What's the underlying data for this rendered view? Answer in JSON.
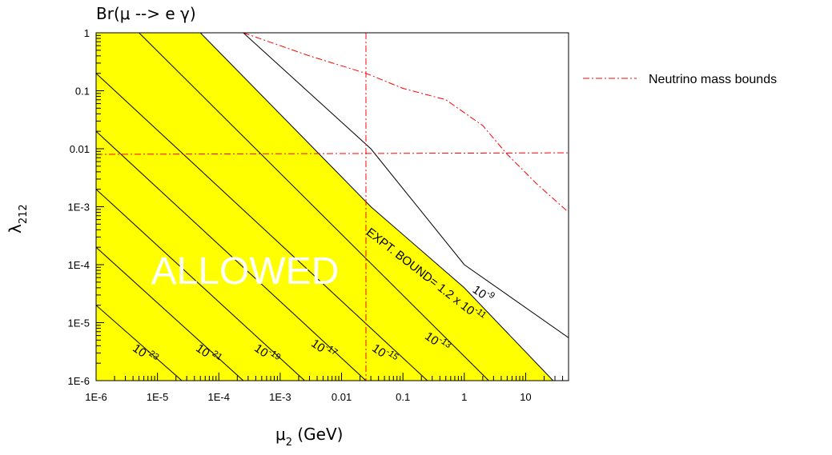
{
  "chart_data": {
    "type": "line",
    "title": "Br(μ --> e γ)",
    "xlabel": {
      "main": "μ",
      "sub": "2",
      "unit": "  (GeV)"
    },
    "ylabel": {
      "main": "λ",
      "sub": "212"
    },
    "xscale": "log",
    "yscale": "log",
    "xlim": [
      1e-06,
      50
    ],
    "ylim": [
      1e-06,
      1
    ],
    "x_ticks": [
      {
        "value": 1e-06,
        "label": "1E-6"
      },
      {
        "value": 1e-05,
        "label": "1E-5"
      },
      {
        "value": 0.0001,
        "label": "1E-4"
      },
      {
        "value": 0.001,
        "label": "1E-3"
      },
      {
        "value": 0.01,
        "label": "0.01"
      },
      {
        "value": 0.1,
        "label": "0.1"
      },
      {
        "value": 1,
        "label": "1"
      },
      {
        "value": 10,
        "label": "10"
      }
    ],
    "y_ticks": [
      {
        "value": 1,
        "label": "1"
      },
      {
        "value": 0.1,
        "label": "0.1"
      },
      {
        "value": 0.01,
        "label": "0.01"
      },
      {
        "value": 0.001,
        "label": "1E-3"
      },
      {
        "value": 0.0001,
        "label": "1E-4"
      },
      {
        "value": 1e-05,
        "label": "1E-5"
      },
      {
        "value": 1e-06,
        "label": "1E-6"
      }
    ],
    "allowed_region_color": "#ffff00",
    "allowed_label": "ALLOWED",
    "contours": [
      {
        "label": "23",
        "points": [
          [
            1e-06,
            2e-05
          ],
          [
            2.5e-05,
            1e-06
          ]
        ]
      },
      {
        "label": "21",
        "points": [
          [
            1e-06,
            0.0002
          ],
          [
            0.00025,
            1e-06
          ]
        ]
      },
      {
        "label": "19",
        "points": [
          [
            1e-06,
            0.002
          ],
          [
            0.0025,
            1e-06
          ]
        ]
      },
      {
        "label": "17",
        "points": [
          [
            1e-06,
            0.02
          ],
          [
            0.025,
            1e-06
          ]
        ]
      },
      {
        "label": "15",
        "points": [
          [
            1e-06,
            0.2
          ],
          [
            0.25,
            1e-06
          ]
        ]
      },
      {
        "label": "13",
        "points": [
          [
            5e-06,
            1
          ],
          [
            2.5,
            1e-06
          ]
        ]
      },
      {
        "label": "9",
        "points": [
          [
            0.00025,
            1
          ],
          [
            0.03,
            0.01
          ],
          [
            1,
            0.0001
          ],
          [
            50,
            5.5e-06
          ]
        ]
      }
    ],
    "expt_bound": {
      "label": "EXPT.  BOUND= 1.2 x 10",
      "exponent": "-11",
      "points": [
        [
          5e-05,
          1
        ],
        [
          0.03,
          0.001
        ],
        [
          1,
          4e-05
        ],
        [
          28,
          1e-06
        ]
      ]
    },
    "neutrino_bounds": {
      "name": "Neutrino  mass bounds",
      "color": "#ff0000",
      "vertical_x": 0.025,
      "horizontal": [
        [
          1e-06,
          0.008
        ],
        [
          50,
          0.0085
        ]
      ],
      "curve": [
        [
          0.00025,
          1
        ],
        [
          0.003,
          0.4
        ],
        [
          0.025,
          0.2
        ],
        [
          0.1,
          0.11
        ],
        [
          0.5,
          0.07
        ],
        [
          2,
          0.025
        ],
        [
          5,
          0.008
        ],
        [
          15,
          0.0025
        ],
        [
          50,
          0.0008
        ]
      ]
    }
  }
}
